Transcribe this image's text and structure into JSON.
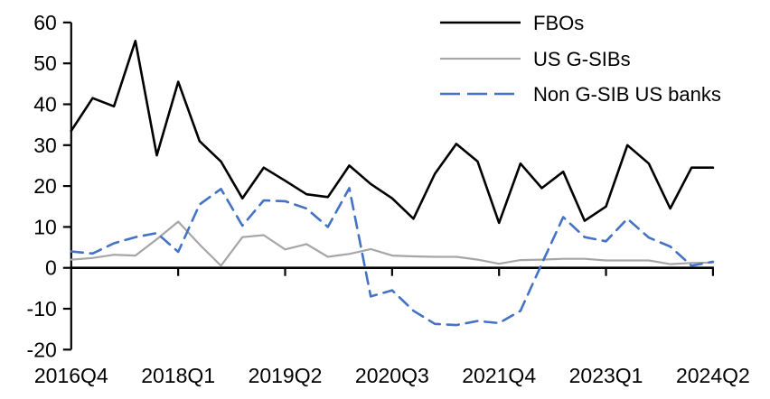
{
  "chart_data": {
    "type": "line",
    "title": "",
    "xlabel": "",
    "ylabel": "",
    "ylim": [
      -20,
      60
    ],
    "grid": false,
    "legend_position": "top-right",
    "categories": [
      "2016Q4",
      "2017Q1",
      "2017Q2",
      "2017Q3",
      "2017Q4",
      "2018Q1",
      "2018Q2",
      "2018Q3",
      "2018Q4",
      "2019Q1",
      "2019Q2",
      "2019Q3",
      "2019Q4",
      "2020Q1",
      "2020Q2",
      "2020Q3",
      "2020Q4",
      "2021Q1",
      "2021Q2",
      "2021Q3",
      "2021Q4",
      "2022Q1",
      "2022Q2",
      "2022Q3",
      "2022Q4",
      "2023Q1",
      "2023Q2",
      "2023Q3",
      "2023Q4",
      "2024Q1",
      "2024Q2"
    ],
    "x_tick_indices": [
      0,
      5,
      10,
      15,
      20,
      25,
      30
    ],
    "x_tick_labels": [
      "2016Q4",
      "2018Q1",
      "2019Q2",
      "2020Q3",
      "2021Q4",
      "2023Q1",
      "2024Q2"
    ],
    "y_ticks": [
      60,
      50,
      40,
      30,
      20,
      10,
      0,
      -10,
      -20
    ],
    "series": [
      {
        "name": "FBOs",
        "color": "#000000",
        "style": "solid",
        "values": [
          33.5,
          41.5,
          39.5,
          55.5,
          27.5,
          45.5,
          31,
          26,
          17,
          24.5,
          21.3,
          18,
          17.3,
          25,
          20.5,
          17,
          12,
          23,
          30.3,
          26,
          11,
          25.5,
          19.5,
          23.5,
          11.5,
          15,
          30,
          25.5,
          14.5,
          24.5,
          24.5
        ]
      },
      {
        "name": "US G-SIBs",
        "color": "#A6A6A6",
        "style": "solid",
        "values": [
          2,
          2.4,
          3.2,
          3,
          7,
          11.3,
          5.7,
          0.5,
          7.5,
          8,
          4.5,
          5.8,
          2.7,
          3.4,
          4.6,
          3,
          2.8,
          2.7,
          2.7,
          2,
          1,
          1.9,
          2,
          2.2,
          2.2,
          1.8,
          1.8,
          1.8,
          0.9,
          1.2,
          1.3
        ]
      },
      {
        "name": "Non G-SIB US banks",
        "color": "#4472C4",
        "style": "dashed",
        "values": [
          4,
          3.5,
          6,
          7.5,
          8.5,
          3.9,
          15.5,
          19.3,
          10.3,
          16.5,
          16.3,
          14.5,
          10,
          19.5,
          -7,
          -5.5,
          -10.5,
          -13.7,
          -14,
          -13,
          -13.5,
          -10.5,
          1,
          12.4,
          7.5,
          6.5,
          12,
          7.4,
          5.2,
          0.5,
          1.5
        ]
      }
    ]
  }
}
